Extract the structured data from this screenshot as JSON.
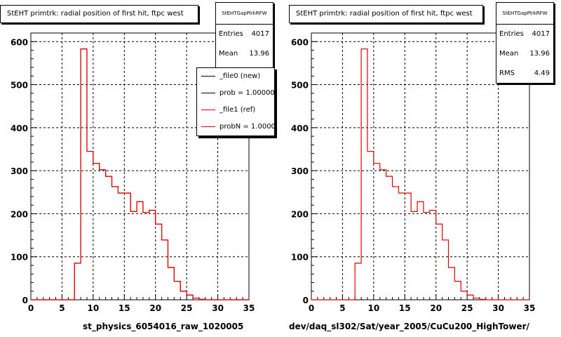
{
  "chart_data": [
    {
      "type": "bar",
      "title": "StEHT primtrk: radial position of first hit, ftpc west",
      "xlabel": "st_physics_6054016_raw_1020005",
      "ylabel": "",
      "xlim": [
        0,
        35
      ],
      "ylim": [
        0,
        620
      ],
      "grid": true,
      "bin_edges": [
        0,
        1,
        2,
        3,
        4,
        5,
        6,
        7,
        8,
        9,
        10,
        11,
        12,
        13,
        14,
        15,
        16,
        17,
        18,
        19,
        20,
        21,
        22,
        23,
        24,
        25,
        26,
        27,
        28,
        29,
        30,
        31,
        32,
        33,
        34,
        35
      ],
      "series": [
        {
          "name": "_file0 (new)",
          "values": [
            0,
            0,
            0,
            0,
            0,
            0,
            0,
            85,
            583,
            345,
            317,
            302,
            287,
            263,
            248,
            248,
            205,
            228,
            203,
            208,
            176,
            139,
            75,
            43,
            20,
            11,
            4,
            1,
            0,
            0,
            0,
            0,
            0,
            0,
            0
          ]
        },
        {
          "name": "_file1 (ref)",
          "values": [
            0,
            0,
            0,
            0,
            0,
            0,
            0,
            85,
            583,
            345,
            317,
            302,
            287,
            263,
            248,
            248,
            205,
            228,
            203,
            208,
            176,
            139,
            75,
            43,
            20,
            11,
            4,
            1,
            0,
            0,
            0,
            0,
            0,
            0,
            0
          ]
        }
      ],
      "legend": [
        "_file0 (new)",
        "prob = 1.000000",
        "_file1 (ref)",
        "probN = 1.000000"
      ],
      "stats": {
        "header": "StEHTGapPlrkRFW",
        "entries": "4017",
        "mean": "13.96"
      }
    },
    {
      "type": "bar",
      "title": "StEHT primtrk: radial position of first hit, ftpc west",
      "xlabel": "dev/daq_sl302/Sat/year_2005/CuCu200_HighTower/",
      "ylabel": "",
      "xlim": [
        0,
        35
      ],
      "ylim": [
        0,
        620
      ],
      "grid": true,
      "bin_edges": [
        0,
        1,
        2,
        3,
        4,
        5,
        6,
        7,
        8,
        9,
        10,
        11,
        12,
        13,
        14,
        15,
        16,
        17,
        18,
        19,
        20,
        21,
        22,
        23,
        24,
        25,
        26,
        27,
        28,
        29,
        30,
        31,
        32,
        33,
        34,
        35
      ],
      "series": [
        {
          "values": [
            0,
            0,
            0,
            0,
            0,
            0,
            0,
            85,
            583,
            345,
            317,
            302,
            287,
            263,
            248,
            248,
            205,
            228,
            203,
            208,
            176,
            139,
            75,
            43,
            20,
            11,
            4,
            1,
            0,
            0,
            0,
            0,
            0,
            0,
            0
          ]
        }
      ],
      "stats": {
        "header": "StEHTGapPlrkRFW",
        "entries": "4017",
        "mean": "13.96",
        "rms": "4.49"
      }
    }
  ],
  "labels": {
    "entries": "Entries",
    "mean": "Mean",
    "rms": "RMS"
  },
  "colors": {
    "hist": "#dd0000",
    "new": "#000000",
    "ref": "#dd0000"
  }
}
